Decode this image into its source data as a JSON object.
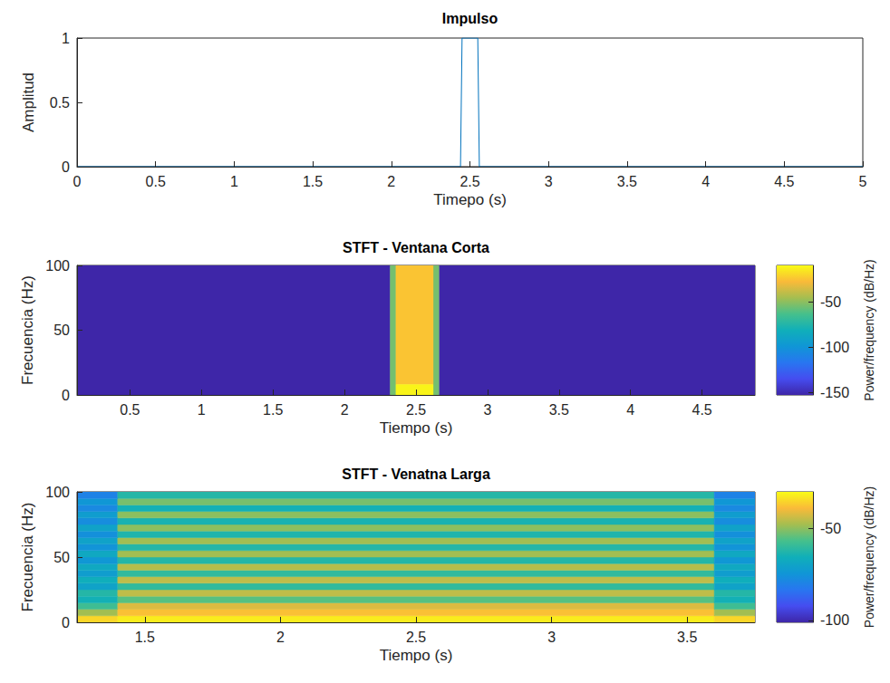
{
  "chart_data": [
    {
      "type": "line",
      "title": "Impulso",
      "x_label": "Timepo (s)",
      "y_label": "Amplitud",
      "color": "#0072bd",
      "x": [
        0,
        2.44,
        2.45,
        2.55,
        2.56,
        5
      ],
      "values": [
        0,
        0,
        1,
        1,
        0,
        0
      ],
      "xlim": [
        0,
        5
      ],
      "xticks": [
        0,
        0.5,
        1,
        1.5,
        2,
        2.5,
        3,
        3.5,
        4,
        4.5,
        5
      ],
      "ylim": [
        0,
        1
      ],
      "yticks": [
        0,
        0.5,
        1
      ]
    },
    {
      "type": "heatmap",
      "title": "STFT - Ventana Corta",
      "x_label": "Tiempo (s)",
      "y_label": "Frecuencia (Hz)",
      "xlim": [
        0.13,
        4.87
      ],
      "xticks": [
        0.5,
        1,
        1.5,
        2,
        2.5,
        3,
        3.5,
        4,
        4.5
      ],
      "ylim": [
        0,
        100
      ],
      "yticks": [
        0,
        50,
        100
      ],
      "colorbar": {
        "label": "Power/frequency (dB/Hz)",
        "lim": [
          -153,
          -10
        ],
        "ticks": [
          -150,
          -100,
          -50
        ]
      },
      "cells": [
        [
          0.13,
          2.32,
          0,
          100,
          -153
        ],
        [
          2.66,
          4.87,
          0,
          100,
          -153
        ],
        [
          2.32,
          2.36,
          0,
          100,
          -55
        ],
        [
          2.62,
          2.66,
          0,
          100,
          -55
        ],
        [
          2.36,
          2.62,
          8,
          100,
          -25
        ],
        [
          2.36,
          2.62,
          0,
          8,
          -12
        ]
      ]
    },
    {
      "type": "heatmap",
      "title": "STFT - Venatna Larga",
      "x_label": "Tiempo (s)",
      "y_label": "Frecuencia (Hz)",
      "xlim": [
        1.25,
        3.75
      ],
      "xticks": [
        1.5,
        2,
        2.5,
        3,
        3.5
      ],
      "ylim": [
        0,
        100
      ],
      "yticks": [
        0,
        50,
        100
      ],
      "colorbar": {
        "label": "Power/frequency (dB/Hz)",
        "lim": [
          -101,
          -30
        ],
        "ticks": [
          -100,
          -50
        ]
      },
      "cells": [
        [
          1.25,
          1.4,
          0,
          5,
          -35
        ],
        [
          1.4,
          3.6,
          0,
          5,
          -32
        ],
        [
          3.6,
          3.75,
          0,
          5,
          -35
        ],
        [
          1.25,
          1.4,
          5,
          10,
          -48
        ],
        [
          1.4,
          3.6,
          5,
          10,
          -38
        ],
        [
          3.6,
          3.75,
          5,
          10,
          -48
        ],
        [
          1.25,
          1.4,
          10,
          15,
          -58
        ],
        [
          1.4,
          3.6,
          10,
          15,
          -42
        ],
        [
          3.6,
          3.75,
          10,
          15,
          -58
        ],
        [
          1.25,
          1.4,
          15,
          20,
          -65
        ],
        [
          1.4,
          3.6,
          15,
          20,
          -55
        ],
        [
          3.6,
          3.75,
          15,
          20,
          -65
        ],
        [
          1.25,
          1.4,
          20,
          25,
          -62
        ],
        [
          1.4,
          3.6,
          20,
          25,
          -45
        ],
        [
          3.6,
          3.75,
          20,
          25,
          -62
        ],
        [
          1.25,
          1.4,
          25,
          30,
          -70
        ],
        [
          1.4,
          3.6,
          25,
          30,
          -60
        ],
        [
          3.6,
          3.75,
          25,
          30,
          -70
        ],
        [
          1.25,
          1.4,
          30,
          35,
          -66
        ],
        [
          1.4,
          3.6,
          30,
          35,
          -45
        ],
        [
          3.6,
          3.75,
          30,
          35,
          -66
        ],
        [
          1.25,
          1.4,
          35,
          40,
          -72
        ],
        [
          1.4,
          3.6,
          35,
          40,
          -60
        ],
        [
          3.6,
          3.75,
          35,
          40,
          -72
        ],
        [
          1.25,
          1.4,
          40,
          45,
          -68
        ],
        [
          1.4,
          3.6,
          40,
          45,
          -46
        ],
        [
          3.6,
          3.75,
          40,
          45,
          -68
        ],
        [
          1.25,
          1.4,
          45,
          50,
          -74
        ],
        [
          1.4,
          3.6,
          45,
          50,
          -62
        ],
        [
          3.6,
          3.75,
          45,
          50,
          -74
        ],
        [
          1.25,
          1.4,
          50,
          55,
          -68
        ],
        [
          1.4,
          3.6,
          50,
          55,
          -48
        ],
        [
          3.6,
          3.75,
          50,
          55,
          -68
        ],
        [
          1.25,
          1.4,
          55,
          60,
          -75
        ],
        [
          1.4,
          3.6,
          55,
          60,
          -62
        ],
        [
          3.6,
          3.75,
          55,
          60,
          -75
        ],
        [
          1.25,
          1.4,
          60,
          65,
          -70
        ],
        [
          1.4,
          3.6,
          60,
          65,
          -48
        ],
        [
          3.6,
          3.75,
          60,
          65,
          -70
        ],
        [
          1.25,
          1.4,
          65,
          70,
          -76
        ],
        [
          1.4,
          3.6,
          65,
          70,
          -63
        ],
        [
          3.6,
          3.75,
          65,
          70,
          -76
        ],
        [
          1.25,
          1.4,
          70,
          75,
          -70
        ],
        [
          1.4,
          3.6,
          70,
          75,
          -50
        ],
        [
          3.6,
          3.75,
          70,
          75,
          -70
        ],
        [
          1.25,
          1.4,
          75,
          80,
          -77
        ],
        [
          1.4,
          3.6,
          75,
          80,
          -64
        ],
        [
          3.6,
          3.75,
          75,
          80,
          -77
        ],
        [
          1.25,
          1.4,
          80,
          85,
          -72
        ],
        [
          1.4,
          3.6,
          80,
          85,
          -50
        ],
        [
          3.6,
          3.75,
          80,
          85,
          -72
        ],
        [
          1.25,
          1.4,
          85,
          90,
          -78
        ],
        [
          1.4,
          3.6,
          85,
          90,
          -65
        ],
        [
          3.6,
          3.75,
          85,
          90,
          -78
        ],
        [
          1.25,
          1.4,
          90,
          95,
          -74
        ],
        [
          1.4,
          3.6,
          90,
          95,
          -52
        ],
        [
          3.6,
          3.75,
          90,
          95,
          -74
        ],
        [
          1.25,
          1.4,
          95,
          100,
          -80
        ],
        [
          1.4,
          3.6,
          95,
          100,
          -62
        ],
        [
          3.6,
          3.75,
          95,
          100,
          -80
        ]
      ]
    }
  ]
}
